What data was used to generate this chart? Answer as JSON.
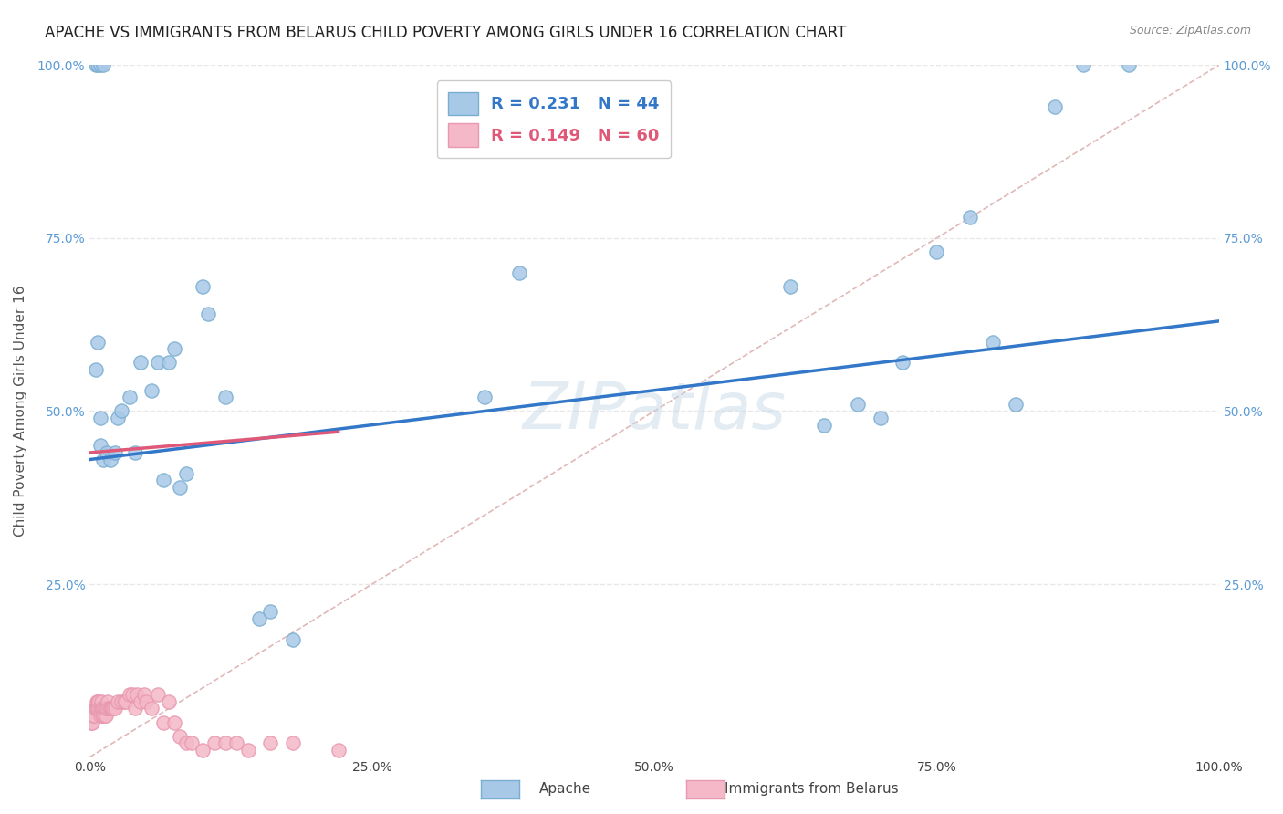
{
  "title": "APACHE VS IMMIGRANTS FROM BELARUS CHILD POVERTY AMONG GIRLS UNDER 16 CORRELATION CHART",
  "source": "Source: ZipAtlas.com",
  "ylabel": "Child Poverty Among Girls Under 16",
  "apache_R": 0.231,
  "apache_N": 44,
  "belarus_R": 0.149,
  "belarus_N": 60,
  "apache_color": "#a8c8e8",
  "belarus_color": "#f4b8c8",
  "apache_edge_color": "#7aaed0",
  "belarus_edge_color": "#e898b0",
  "apache_line_color": "#3378c8",
  "belarus_line_color": "#e05878",
  "diagonal_color": "#e0b8b8",
  "watermark": "ZIPatlas",
  "apache_x": [
    0.005,
    0.007,
    0.009,
    0.009,
    0.012,
    0.015,
    0.018,
    0.022,
    0.025,
    0.028,
    0.035,
    0.04,
    0.045,
    0.055,
    0.06,
    0.065,
    0.07,
    0.075,
    0.08,
    0.085,
    0.1,
    0.105,
    0.12,
    0.15,
    0.16,
    0.18,
    0.35,
    0.38,
    0.62,
    0.65,
    0.68,
    0.7,
    0.72,
    0.75,
    0.78,
    0.8,
    0.82,
    0.855,
    0.88,
    0.92,
    0.005,
    0.007,
    0.009,
    0.012
  ],
  "apache_y": [
    0.56,
    0.6,
    0.49,
    0.45,
    0.43,
    0.44,
    0.43,
    0.44,
    0.49,
    0.5,
    0.52,
    0.44,
    0.57,
    0.53,
    0.57,
    0.4,
    0.57,
    0.59,
    0.39,
    0.41,
    0.68,
    0.64,
    0.52,
    0.2,
    0.21,
    0.17,
    0.52,
    0.7,
    0.68,
    0.48,
    0.51,
    0.49,
    0.57,
    0.73,
    0.78,
    0.6,
    0.51,
    0.94,
    1.0,
    1.1,
    1.0,
    1.0,
    1.0,
    1.0
  ],
  "belarus_x": [
    0.001,
    0.002,
    0.003,
    0.004,
    0.005,
    0.005,
    0.006,
    0.006,
    0.007,
    0.007,
    0.008,
    0.008,
    0.009,
    0.009,
    0.01,
    0.01,
    0.011,
    0.011,
    0.012,
    0.012,
    0.013,
    0.013,
    0.014,
    0.014,
    0.015,
    0.016,
    0.017,
    0.018,
    0.018,
    0.019,
    0.02,
    0.021,
    0.022,
    0.025,
    0.028,
    0.03,
    0.032,
    0.035,
    0.038,
    0.04,
    0.042,
    0.045,
    0.048,
    0.05,
    0.055,
    0.06,
    0.065,
    0.07,
    0.075,
    0.08,
    0.085,
    0.09,
    0.1,
    0.11,
    0.12,
    0.13,
    0.14,
    0.16,
    0.18,
    0.22
  ],
  "belarus_y": [
    0.05,
    0.05,
    0.06,
    0.06,
    0.07,
    0.07,
    0.07,
    0.08,
    0.07,
    0.08,
    0.08,
    0.07,
    0.07,
    0.06,
    0.07,
    0.08,
    0.06,
    0.07,
    0.07,
    0.06,
    0.07,
    0.06,
    0.06,
    0.07,
    0.07,
    0.08,
    0.07,
    0.07,
    0.07,
    0.07,
    0.07,
    0.07,
    0.07,
    0.08,
    0.08,
    0.08,
    0.08,
    0.09,
    0.09,
    0.07,
    0.09,
    0.08,
    0.09,
    0.08,
    0.07,
    0.09,
    0.05,
    0.08,
    0.05,
    0.03,
    0.02,
    0.02,
    0.01,
    0.02,
    0.02,
    0.02,
    0.01,
    0.02,
    0.02,
    0.01
  ],
  "xlim": [
    0.0,
    1.0
  ],
  "ylim": [
    0.0,
    1.0
  ],
  "grid_color": "#e8e8e8",
  "background_color": "#ffffff",
  "title_fontsize": 12,
  "source_fontsize": 9,
  "axis_label_fontsize": 11,
  "tick_fontsize": 10,
  "tick_color": "#5b9bd5",
  "axis_label_color": "#555555"
}
